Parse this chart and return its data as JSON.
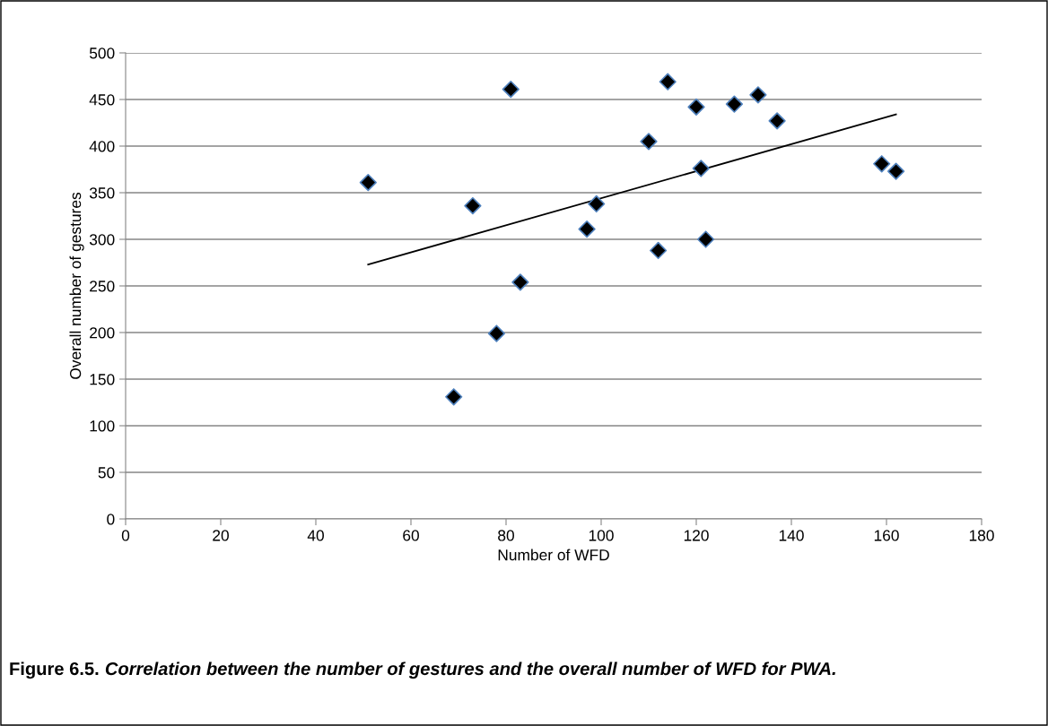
{
  "chart_data": {
    "type": "scatter",
    "title": "Figure 6.5.",
    "subtitle": "Correlation between the number of gestures and the overall number of WFD for PWA.",
    "xlabel": "Number of WFD",
    "ylabel": "Overall number of gestures",
    "series": [
      {
        "marker": "diamond",
        "color": "#000000",
        "x": [
          51,
          69,
          73,
          78,
          81,
          83,
          97,
          99,
          110,
          112,
          114,
          120,
          121,
          122,
          128,
          133,
          137,
          159,
          162
        ],
        "values": [
          361,
          131,
          336,
          199,
          461,
          254,
          311,
          338,
          405,
          288,
          469,
          442,
          376,
          300,
          445,
          455,
          427,
          381,
          373
        ]
      },
      {
        "type": "line",
        "marker": "none",
        "color": "#000000",
        "x": [
          51,
          162
        ],
        "values": [
          273,
          434
        ]
      }
    ],
    "xlim": [
      0,
      180
    ],
    "xticks": [
      0,
      20,
      40,
      60,
      80,
      100,
      120,
      140,
      160,
      180
    ],
    "ylim": [
      0,
      500
    ],
    "yticks": [
      0,
      50,
      100,
      150,
      200,
      250,
      300,
      350,
      400,
      450,
      500
    ],
    "grid": "y",
    "legend": false
  }
}
